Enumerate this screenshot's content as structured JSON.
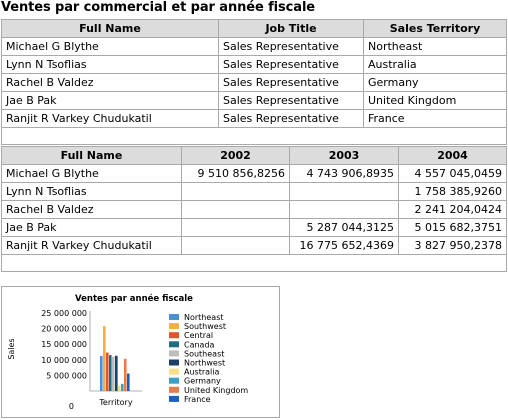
{
  "page": {
    "title": "Ventes par commercial et par année fiscale"
  },
  "table1": {
    "headers": [
      "Full Name",
      "Job Title",
      "Sales Territory"
    ],
    "rows": [
      [
        "Michael G Blythe",
        "Sales Representative",
        "Northeast"
      ],
      [
        "Lynn N Tsoflias",
        "Sales Representative",
        "Australia"
      ],
      [
        "Rachel B Valdez",
        "Sales Representative",
        "Germany"
      ],
      [
        "Jae B Pak",
        "Sales Representative",
        "United Kingdom"
      ],
      [
        "Ranjit R Varkey Chudukatil",
        "Sales Representative",
        "France"
      ]
    ]
  },
  "table2": {
    "headers": [
      "Full Name",
      "2002",
      "2003",
      "2004"
    ],
    "rows": [
      [
        "Michael G Blythe",
        "9 510 856,8256",
        "4 743 906,8935",
        "4 557 045,0459"
      ],
      [
        "Lynn N Tsoflias",
        "",
        "",
        "1 758 385,9260"
      ],
      [
        "Rachel B Valdez",
        "",
        "",
        "2 241 204,0424"
      ],
      [
        "Jae B Pak",
        "",
        "5 287 044,3125",
        "5 015 682,3751"
      ],
      [
        "Ranjit R Varkey Chudukatil",
        "",
        "16 775 652,4369",
        "3 827 950,2378"
      ]
    ]
  },
  "chart_data": {
    "type": "bar",
    "title": "Ventes par année fiscale",
    "xlabel": "Territory",
    "ylabel": "Sales",
    "ylim": [
      0,
      25000000
    ],
    "yticks": [
      "0",
      "5 000 000",
      "10 000 000",
      "15 000 000",
      "20 000 000",
      "25 000 000"
    ],
    "categories": [
      "Territory"
    ],
    "series": [
      {
        "name": "Northeast",
        "color": "#4f8fd6",
        "values": [
          11200000
        ]
      },
      {
        "name": "Southwest",
        "color": "#f2b13c",
        "values": [
          20800000
        ]
      },
      {
        "name": "Central",
        "color": "#e0552a",
        "values": [
          12300000
        ]
      },
      {
        "name": "Canada",
        "color": "#1f6e7e",
        "values": [
          11500000
        ]
      },
      {
        "name": "Southeast",
        "color": "#bdbdbd",
        "values": [
          11000000
        ]
      },
      {
        "name": "Northwest",
        "color": "#1c3f66",
        "values": [
          11300000
        ]
      },
      {
        "name": "Australia",
        "color": "#f7e08a",
        "values": [
          1800000
        ]
      },
      {
        "name": "Germany",
        "color": "#3aa0c8",
        "values": [
          2300000
        ]
      },
      {
        "name": "United Kingdom",
        "color": "#e87b4e",
        "values": [
          10300000
        ]
      },
      {
        "name": "France",
        "color": "#1b5fc1",
        "values": [
          5600000
        ]
      }
    ]
  }
}
